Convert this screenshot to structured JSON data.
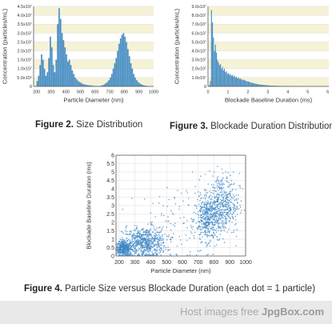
{
  "colors": {
    "bar": "#4a8fc4",
    "dot": "#3f88c5",
    "band": "#f6f2d6",
    "grid": "#dddddd",
    "axis": "#555555"
  },
  "chart_data": [
    {
      "id": "fig2",
      "type": "bar",
      "xlabel": "Particle Diameter (nm)",
      "ylabel": "Concentration (particles/mL)",
      "xlim": [
        180,
        1000
      ],
      "ylim": [
        0,
        45000000
      ],
      "xticks": [
        200,
        300,
        400,
        500,
        600,
        700,
        800,
        900,
        1000
      ],
      "xtick_labels": [
        "200",
        "300",
        "400",
        "500",
        "600",
        "700",
        "800",
        "900",
        "1000"
      ],
      "yticks": [
        0,
        5000000,
        10000000,
        15000000,
        20000000,
        25000000,
        30000000,
        35000000,
        40000000,
        45000000
      ],
      "ytick_labels": [
        "0",
        "5.0x10⁶",
        "1.0x10⁷",
        "1.5x10⁷",
        "2.0x10⁷",
        "2.5x10⁷",
        "3.0x10⁷",
        "3.5x10⁷",
        "4.0x10⁷",
        "4.5x10⁷"
      ],
      "bin_start": 200,
      "bin_width": 10,
      "values": [
        3000000,
        6000000,
        12000000,
        18000000,
        15000000,
        10000000,
        6000000,
        8000000,
        16000000,
        28000000,
        22000000,
        12000000,
        8000000,
        15000000,
        35000000,
        44000000,
        38000000,
        30000000,
        26000000,
        22000000,
        18000000,
        14000000,
        15000000,
        12000000,
        9000000,
        7000000,
        5000000,
        4000000,
        3000000,
        2500000,
        2000000,
        1500000,
        1200000,
        1000000,
        800000,
        700000,
        600000,
        500000,
        400000,
        300000,
        250000,
        200000,
        200000,
        300000,
        500000,
        800000,
        1200000,
        1800000,
        2500000,
        3500000,
        5000000,
        7000000,
        10000000,
        13000000,
        16000000,
        20000000,
        24000000,
        27000000,
        29000000,
        30000000,
        28000000,
        25000000,
        21000000,
        17000000,
        13000000,
        10000000,
        7000000,
        5000000,
        3500000,
        2500000,
        1800000,
        1200000,
        900000,
        600000,
        400000,
        300000,
        200000,
        150000,
        100000,
        80000
      ],
      "band_color": "#f6f2d6"
    },
    {
      "id": "fig3",
      "type": "bar",
      "xlabel": "Blockade Baseline Duration (ms)",
      "ylabel": "Concentration (particles/mL)",
      "xlim": [
        0,
        6.05
      ],
      "ylim": [
        0,
        90000000
      ],
      "xticks": [
        0,
        1,
        2,
        3,
        4,
        5,
        6
      ],
      "xtick_labels": [
        "0",
        "1",
        "2",
        "3",
        "4",
        "5",
        "6"
      ],
      "yticks": [
        0,
        10000000,
        20000000,
        30000000,
        40000000,
        50000000,
        60000000,
        70000000,
        80000000,
        90000000
      ],
      "ytick_labels": [
        "0",
        "1.0x10⁷",
        "2.0x10⁷",
        "3.0x10⁷",
        "4.0x10⁷",
        "5.0x10⁷",
        "6.0x10⁷",
        "7.0x10⁷",
        "8.0x10⁷",
        "9.0x10⁷"
      ],
      "bin_start": 0,
      "bin_width": 0.05,
      "values": [
        0,
        1500000,
        6000000,
        86000000,
        72000000,
        55000000,
        40000000,
        47000000,
        38000000,
        30000000,
        27000000,
        24000000,
        25000000,
        20000000,
        22000000,
        18000000,
        20000000,
        16000000,
        17000000,
        14000000,
        15000000,
        13000000,
        14000000,
        12000000,
        13000000,
        11000000,
        12000000,
        10000000,
        11000000,
        9000000,
        10000000,
        8500000,
        9000000,
        7500000,
        8000000,
        7000000,
        7500000,
        6500000,
        6000000,
        5500000,
        5500000,
        5000000,
        4500000,
        4200000,
        4000000,
        3600000,
        3300000,
        3000000,
        2800000,
        2600000,
        2400000,
        2200000,
        2000000,
        1900000,
        1800000,
        1600000,
        1500000,
        1400000,
        1300000,
        1200000,
        1100000,
        1000000,
        950000,
        900000,
        850000,
        800000,
        750000,
        700000,
        650000,
        600000,
        580000,
        560000,
        540000,
        520000,
        500000,
        480000,
        460000,
        440000,
        420000,
        400000,
        380000,
        360000,
        340000,
        320000,
        300000,
        280000,
        260000,
        240000,
        220000,
        200000,
        190000,
        180000,
        170000,
        160000,
        150000,
        140000,
        130000,
        120000,
        110000,
        100000,
        95000,
        90000,
        85000,
        80000,
        75000,
        70000,
        65000,
        60000,
        55000,
        50000,
        48000,
        46000,
        44000,
        42000,
        40000,
        38000,
        36000,
        34000,
        32000,
        30000
      ],
      "band_color": "#f6f2d6"
    },
    {
      "id": "fig4",
      "type": "scatter",
      "xlabel": "Particle Diameter (nm)",
      "ylabel": "Blockade Baseline Duration (ms)",
      "xlim": [
        180,
        1000
      ],
      "ylim": [
        0,
        6
      ],
      "xticks": [
        200,
        300,
        400,
        500,
        600,
        700,
        800,
        900,
        1000
      ],
      "xtick_labels": [
        "200",
        "300",
        "400",
        "500",
        "600",
        "700",
        "800",
        "900",
        "1000"
      ],
      "yticks": [
        0,
        0.5,
        1,
        1.5,
        2,
        2.5,
        3,
        3.5,
        4,
        4.5,
        5,
        5.5,
        6
      ],
      "ytick_labels": [
        "0",
        "0.5",
        "1",
        "1.5",
        "2",
        "2.5",
        "3",
        "3.5",
        "4",
        "4.5",
        "5",
        "5.5",
        "6"
      ],
      "clusters": [
        {
          "cx": 230,
          "cy": 0.45,
          "sx": 25,
          "sy": 0.2,
          "n": 420
        },
        {
          "cx": 360,
          "cy": 0.8,
          "sx": 70,
          "sy": 0.45,
          "n": 640
        },
        {
          "cx": 760,
          "cy": 2.2,
          "sx": 40,
          "sy": 0.65,
          "n": 380
        },
        {
          "cx": 850,
          "cy": 3.1,
          "sx": 55,
          "sy": 0.9,
          "n": 480
        },
        {
          "cx": 580,
          "cy": 1.9,
          "sx": 170,
          "sy": 1.2,
          "n": 130
        }
      ]
    }
  ],
  "captions": {
    "fig2_label": "Figure 2.",
    "fig2_text": "Size Distribution",
    "fig3_label": "Figure 3.",
    "fig3_text": "Blockade Duration Distribution",
    "fig4_label": "Figure 4.",
    "fig4_text": "Particle Size versus Blockade Duration (each dot = 1 particle)"
  },
  "footer": {
    "prefix": "Host images free",
    "brand": "JpgBox.com"
  }
}
